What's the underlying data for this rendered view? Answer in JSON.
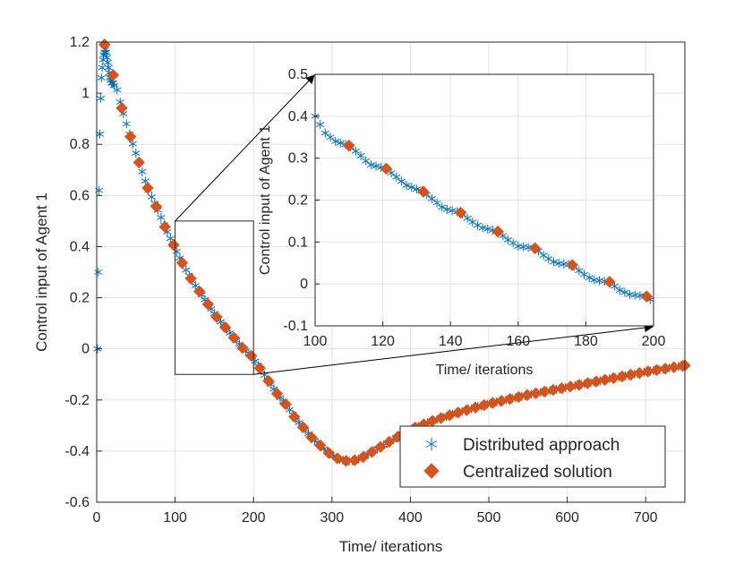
{
  "chart_data": [
    {
      "type": "scatter",
      "role": "main",
      "xlabel": "Time/ iterations",
      "ylabel": "Control input of Agent 1",
      "xlim": [
        0,
        750
      ],
      "ylim": [
        -0.6,
        1.2
      ],
      "xticks": [
        0,
        100,
        200,
        300,
        400,
        500,
        600,
        700
      ],
      "yticks": [
        -0.6,
        -0.4,
        -0.2,
        0,
        0.2,
        0.4,
        0.6,
        0.8,
        1,
        1.2
      ],
      "grid": true,
      "legend": {
        "position": "bottom-right",
        "entries": [
          "Distributed approach",
          "Centralized solution"
        ]
      },
      "series": [
        {
          "name": "Distributed approach",
          "marker": "asterisk",
          "color": "#0072BD",
          "points": [
            [
              1,
              0
            ],
            [
              2,
              0.3
            ],
            [
              3,
              0.62
            ],
            [
              4,
              0.84
            ],
            [
              5,
              0.98
            ],
            [
              6,
              1.06
            ],
            [
              7,
              1.1
            ],
            [
              8,
              1.13
            ],
            [
              9,
              1.15
            ],
            [
              10,
              1.16
            ],
            [
              11,
              1.17
            ],
            [
              12,
              1.16
            ],
            [
              13,
              1.14
            ],
            [
              14,
              1.12
            ],
            [
              15,
              1.1
            ],
            [
              16,
              1.08
            ],
            [
              17,
              1.06
            ],
            [
              18,
              1.05
            ],
            [
              19,
              1.04
            ],
            [
              20,
              1.04
            ],
            [
              21,
              1.04
            ],
            [
              22,
              1.03
            ]
          ],
          "curve_step": 4
        },
        {
          "name": "Centralized solution",
          "marker": "diamond",
          "color": "#D95319",
          "step": 11
        }
      ],
      "curve": [
        [
          0,
          1.2
        ],
        [
          10,
          1.19
        ],
        [
          22,
          1.06
        ],
        [
          33,
          0.93
        ],
        [
          44,
          0.82
        ],
        [
          55,
          0.72
        ],
        [
          66,
          0.62
        ],
        [
          77,
          0.55
        ],
        [
          88,
          0.47
        ],
        [
          99,
          0.4
        ],
        [
          110,
          0.33
        ],
        [
          121,
          0.27
        ],
        [
          132,
          0.22
        ],
        [
          143,
          0.17
        ],
        [
          154,
          0.12
        ],
        [
          165,
          0.08
        ],
        [
          176,
          0.04
        ],
        [
          187,
          0.0
        ],
        [
          198,
          -0.03
        ],
        [
          209,
          -0.08
        ],
        [
          220,
          -0.13
        ],
        [
          231,
          -0.18
        ],
        [
          242,
          -0.22
        ],
        [
          253,
          -0.27
        ],
        [
          264,
          -0.31
        ],
        [
          275,
          -0.35
        ],
        [
          286,
          -0.38
        ],
        [
          297,
          -0.41
        ],
        [
          308,
          -0.43
        ],
        [
          320,
          -0.44
        ],
        [
          331,
          -0.435
        ],
        [
          342,
          -0.42
        ],
        [
          353,
          -0.4
        ],
        [
          364,
          -0.38
        ],
        [
          375,
          -0.36
        ],
        [
          400,
          -0.315
        ],
        [
          430,
          -0.28
        ],
        [
          460,
          -0.25
        ],
        [
          500,
          -0.215
        ],
        [
          550,
          -0.18
        ],
        [
          600,
          -0.15
        ],
        [
          650,
          -0.12
        ],
        [
          700,
          -0.09
        ],
        [
          750,
          -0.065
        ]
      ]
    },
    {
      "type": "scatter",
      "role": "inset",
      "xlabel": "Time/ iterations",
      "ylabel": "Control input of Agent 1",
      "xlim": [
        100,
        200
      ],
      "ylim": [
        -0.1,
        0.5
      ],
      "xticks": [
        100,
        120,
        140,
        160,
        180,
        200
      ],
      "yticks": [
        -0.1,
        0,
        0.1,
        0.2,
        0.3,
        0.4,
        0.5
      ],
      "grid": true,
      "zoom_region": {
        "x": [
          100,
          200
        ],
        "y": [
          -0.1,
          0.5
        ]
      },
      "series": [
        {
          "name": "Distributed approach",
          "marker": "asterisk",
          "color": "#0072BD",
          "step": 1.5
        },
        {
          "name": "Centralized solution",
          "marker": "diamond",
          "color": "#D95319",
          "step": 11
        }
      ],
      "curve": [
        [
          100,
          0.4
        ],
        [
          103,
          0.36
        ],
        [
          106,
          0.34
        ],
        [
          110,
          0.33
        ],
        [
          113,
          0.31
        ],
        [
          116,
          0.285
        ],
        [
          121,
          0.275
        ],
        [
          124,
          0.255
        ],
        [
          127,
          0.235
        ],
        [
          132,
          0.22
        ],
        [
          135,
          0.2
        ],
        [
          138,
          0.18
        ],
        [
          143,
          0.17
        ],
        [
          146,
          0.15
        ],
        [
          149,
          0.135
        ],
        [
          154,
          0.125
        ],
        [
          157,
          0.105
        ],
        [
          160,
          0.09
        ],
        [
          165,
          0.085
        ],
        [
          168,
          0.065
        ],
        [
          171,
          0.05
        ],
        [
          176,
          0.045
        ],
        [
          179,
          0.025
        ],
        [
          182,
          0.01
        ],
        [
          187,
          0.005
        ],
        [
          190,
          -0.015
        ],
        [
          193,
          -0.025
        ],
        [
          198,
          -0.03
        ],
        [
          200,
          -0.045
        ]
      ]
    }
  ]
}
